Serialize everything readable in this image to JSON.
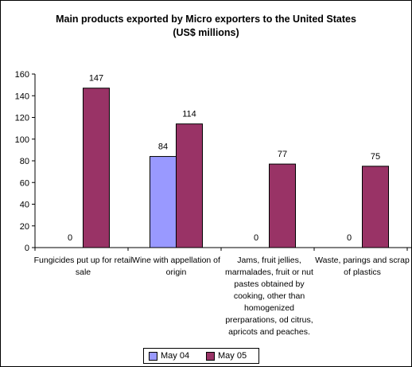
{
  "chart_data": {
    "type": "bar",
    "title_lines": [
      "Main products exported by Micro exporters to the United States",
      "(US$ millions)"
    ],
    "categories": [
      [
        "Fungicides put up for retail",
        "sale"
      ],
      [
        "Wine with appellation of",
        "origin"
      ],
      [
        "Jams, fruit jellies,",
        "marmalades, fruit or nut",
        "pastes obtained by",
        "cooking, other than",
        "homogenized",
        "prerparations, od citrus,",
        "apricots and peaches."
      ],
      [
        "Waste, parings and scrap",
        "of plastics"
      ]
    ],
    "series": [
      {
        "name": "May 04",
        "values": [
          0,
          84,
          0,
          0
        ],
        "labels": [
          "0",
          "84",
          "0",
          "0"
        ],
        "color": "#9999ff"
      },
      {
        "name": "May 05",
        "values": [
          147,
          114,
          77,
          75
        ],
        "labels": [
          "147",
          "114",
          "77",
          "75"
        ],
        "color": "#993366"
      }
    ],
    "ylim": [
      0,
      160
    ],
    "yticks": [
      "0",
      "20",
      "40",
      "60",
      "80",
      "100",
      "120",
      "140",
      "160"
    ],
    "legend_position": "bottom",
    "grid": false
  }
}
